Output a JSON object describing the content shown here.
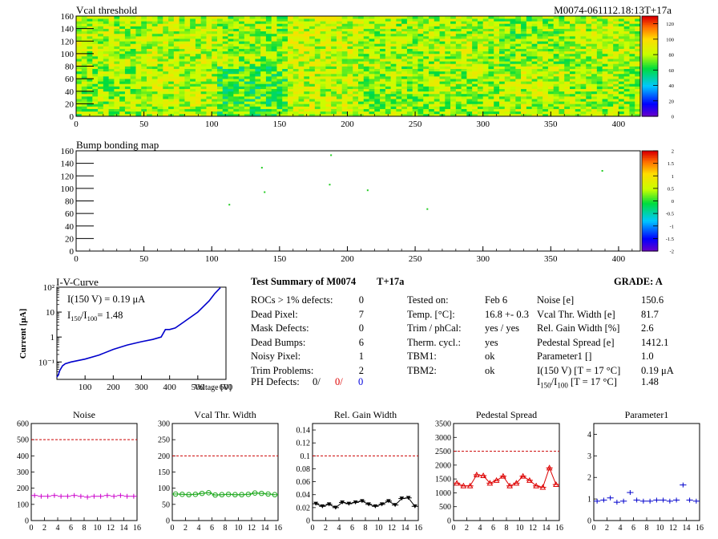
{
  "header": {
    "vcal_title": "Vcal threshold",
    "module_id": "M0074-061112.18:13T+17a",
    "bump_title": "Bump bonding map"
  },
  "colors": {
    "background": "#ffffff",
    "noise": "#cc00cc",
    "vcal": "#22aa22",
    "gain": "#000000",
    "pedestal": "#dd0000",
    "param": "#0000cc",
    "limit": "#cc0000",
    "iv": "#0000cc"
  },
  "chart_data": [
    {
      "type": "heatmap",
      "name": "vcal",
      "title": "Vcal threshold",
      "xlim": [
        0,
        416
      ],
      "ylim": [
        0,
        160
      ],
      "xticks": [
        0,
        50,
        100,
        150,
        200,
        250,
        300,
        350,
        400
      ],
      "yticks": [
        0,
        20,
        40,
        60,
        80,
        100,
        120,
        140,
        160
      ],
      "zlim": [
        0,
        130
      ],
      "zticks": [
        0,
        20,
        40,
        60,
        80,
        100,
        120
      ],
      "roc_levels_top": [
        80,
        82,
        76,
        84,
        79,
        80,
        75,
        81
      ],
      "roc_levels_bottom": [
        76,
        82,
        68,
        83,
        76,
        78,
        81,
        78
      ]
    },
    {
      "type": "heatmap",
      "name": "bump",
      "title": "Bump bonding map",
      "xlim": [
        0,
        416
      ],
      "ylim": [
        0,
        160
      ],
      "xticks": [
        0,
        50,
        100,
        150,
        200,
        250,
        300,
        350,
        400
      ],
      "yticks": [
        0,
        20,
        40,
        60,
        80,
        100,
        120,
        140,
        160
      ],
      "zlim": [
        -2,
        2
      ],
      "zticks": [
        -2,
        -1.5,
        -1,
        -0.5,
        0,
        0.5,
        1,
        1.5,
        2
      ],
      "points": [
        [
          113,
          74
        ],
        [
          137,
          133
        ],
        [
          139,
          94
        ],
        [
          187,
          106
        ],
        [
          188,
          153
        ],
        [
          215,
          97
        ],
        [
          259,
          67
        ],
        [
          388,
          128
        ]
      ]
    },
    {
      "type": "line",
      "name": "iv",
      "title": "I-V-Curve",
      "xlabel": "Voltage [V]",
      "ylabel": "Current [μA]",
      "xlim": [
        0,
        600
      ],
      "yscale": "log",
      "ylim": [
        0.02,
        100
      ],
      "xticks": [
        100,
        200,
        300,
        400,
        500,
        600
      ],
      "yticks": [
        0.1,
        1,
        10,
        100
      ],
      "annotation_1": "I(150 V) = 0.19 μA",
      "annotation_2_label": "I",
      "annotation_2_sub1": "150",
      "annotation_2_sub2": "100",
      "annotation_2_value": "=  1.48",
      "points": [
        [
          0,
          0.025
        ],
        [
          5,
          0.03
        ],
        [
          10,
          0.045
        ],
        [
          20,
          0.07
        ],
        [
          30,
          0.085
        ],
        [
          50,
          0.1
        ],
        [
          100,
          0.13
        ],
        [
          150,
          0.19
        ],
        [
          200,
          0.32
        ],
        [
          250,
          0.48
        ],
        [
          300,
          0.65
        ],
        [
          340,
          0.8
        ],
        [
          370,
          1.0
        ],
        [
          385,
          2.0
        ],
        [
          400,
          2.0
        ],
        [
          420,
          2.3
        ],
        [
          450,
          4.0
        ],
        [
          500,
          10.0
        ],
        [
          540,
          28.0
        ],
        [
          560,
          55.0
        ],
        [
          580,
          95.0
        ]
      ]
    },
    {
      "type": "scatter",
      "name": "noise",
      "title": "Noise",
      "xlim": [
        0,
        16
      ],
      "ylim": [
        0,
        600
      ],
      "limit": 500,
      "xticks": [
        0,
        2,
        4,
        6,
        8,
        10,
        12,
        14,
        16
      ],
      "yticks": [
        0,
        100,
        200,
        300,
        400,
        500,
        600
      ],
      "marker": "cross",
      "values": [
        155,
        150,
        150,
        155,
        150,
        150,
        155,
        150,
        145,
        150,
        150,
        155,
        150,
        155,
        150,
        150
      ]
    },
    {
      "type": "scatter",
      "name": "vcal-width",
      "title": "Vcal Thr. Width",
      "xlim": [
        0,
        16
      ],
      "ylim": [
        0,
        300
      ],
      "limit": 200,
      "xticks": [
        0,
        2,
        4,
        6,
        8,
        10,
        12,
        14,
        16
      ],
      "yticks": [
        0,
        50,
        100,
        150,
        200,
        250,
        300
      ],
      "marker": "circle",
      "values": [
        82,
        81,
        80,
        81,
        84,
        86,
        79,
        80,
        81,
        80,
        80,
        81,
        85,
        84,
        82,
        80
      ]
    },
    {
      "type": "scatter",
      "name": "gain-width",
      "title": "Rel. Gain Width",
      "xlim": [
        0,
        16
      ],
      "ylim": [
        0,
        0.15
      ],
      "limit": 0.1,
      "xticks": [
        0,
        2,
        4,
        6,
        8,
        10,
        12,
        14,
        16
      ],
      "yticks": [
        0,
        0.02,
        0.04,
        0.06,
        0.08,
        0.1,
        0.12,
        0.14
      ],
      "marker": "triangle-down",
      "values": [
        0.026,
        0.022,
        0.025,
        0.02,
        0.028,
        0.026,
        0.028,
        0.03,
        0.025,
        0.022,
        0.025,
        0.03,
        0.024,
        0.034,
        0.035,
        0.022
      ]
    },
    {
      "type": "scatter",
      "name": "pedestal",
      "title": "Pedestal Spread",
      "xlim": [
        0,
        16
      ],
      "ylim": [
        0,
        3500
      ],
      "limit": 2500,
      "xticks": [
        0,
        2,
        4,
        6,
        8,
        10,
        12,
        14,
        16
      ],
      "yticks": [
        0,
        500,
        1000,
        1500,
        2000,
        2500,
        3000,
        3500
      ],
      "marker": "triangle-up",
      "values": [
        1350,
        1250,
        1250,
        1650,
        1620,
        1350,
        1450,
        1600,
        1250,
        1350,
        1600,
        1450,
        1250,
        1200,
        1900,
        1300
      ]
    },
    {
      "type": "scatter",
      "name": "parameter1",
      "title": "Parameter1",
      "xlim": [
        0,
        16
      ],
      "ylim": [
        0,
        4.5
      ],
      "limit": null,
      "xticks": [
        0,
        2,
        4,
        6,
        8,
        10,
        12,
        14,
        16
      ],
      "yticks": [
        0,
        1,
        2,
        3,
        4
      ],
      "marker": "cross",
      "values": [
        0.9,
        0.95,
        1.05,
        0.85,
        0.9,
        1.3,
        0.95,
        0.9,
        0.9,
        0.95,
        0.95,
        0.9,
        0.95,
        1.65,
        0.95,
        0.9
      ]
    }
  ],
  "summary": {
    "title": "Test Summary of M0074",
    "tag": "T+17a",
    "grade": "GRADE:  A",
    "col1": [
      {
        "label": "ROCs > 1% defects:",
        "value": "0"
      },
      {
        "label": "Dead Pixel:",
        "value": "7"
      },
      {
        "label": "Mask Defects:",
        "value": "0"
      },
      {
        "label": "Dead Bumps:",
        "value": "6"
      },
      {
        "label": "Noisy Pixel:",
        "value": "1"
      },
      {
        "label": "Trim Problems:",
        "value": "2"
      }
    ],
    "ph_label": "PH Defects:",
    "ph_values": [
      "0/",
      "0/",
      "0"
    ],
    "col2": [
      {
        "label": "Tested on:",
        "value": "Feb 6"
      },
      {
        "label": "Temp. [°C]:",
        "value": "16.8 +- 0.3"
      },
      {
        "label": "Trim / phCal:",
        "value": "yes / yes"
      },
      {
        "label": "Therm. cycl.:",
        "value": "yes"
      },
      {
        "label": "TBM1:",
        "value": "ok"
      },
      {
        "label": "TBM2:",
        "value": "ok"
      }
    ],
    "col3": [
      {
        "label": "Noise [e]",
        "value": "150.6"
      },
      {
        "label": "Vcal Thr. Width [e]",
        "value": "81.7"
      },
      {
        "label": "Rel. Gain Width [%]",
        "value": "2.6"
      },
      {
        "label": "Pedestal Spread [e]",
        "value": "1412.1"
      },
      {
        "label": "Parameter1 []",
        "value": "1.0"
      },
      {
        "label": "I(150 V) [T = 17 °C]",
        "value": "0.19 μA"
      }
    ],
    "ratio_label_I": "I",
    "ratio_sub1": "150",
    "ratio_sep": "/I",
    "ratio_sub2": "100",
    "ratio_rest": "  [T = 17 °C]",
    "ratio_value": "1.48"
  }
}
